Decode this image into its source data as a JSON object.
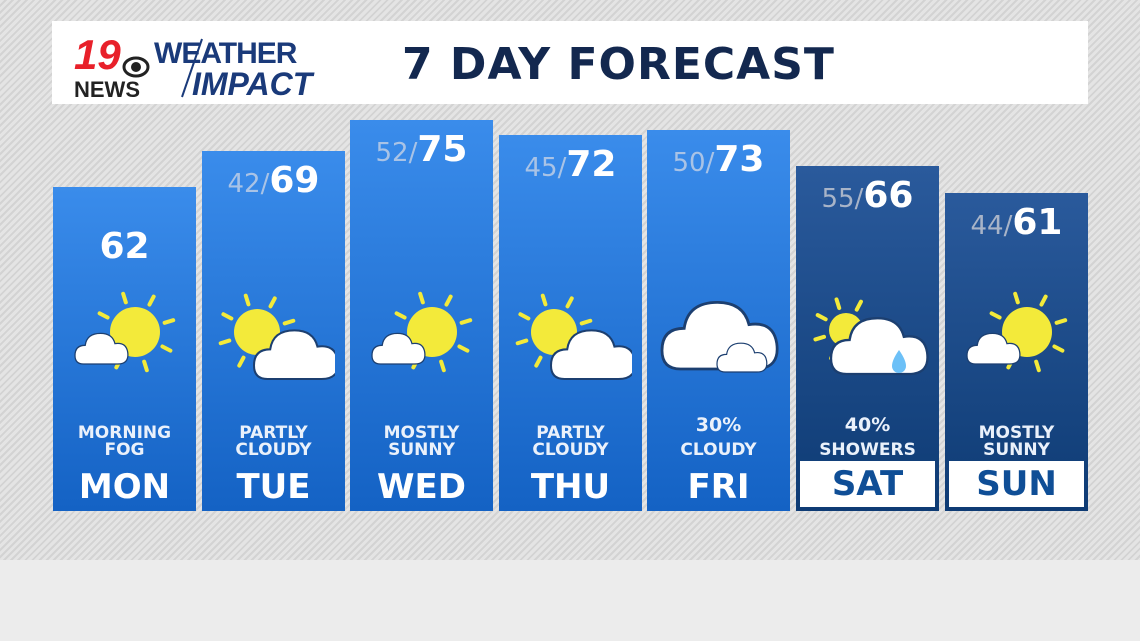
{
  "header": {
    "logo_text": "19 NEWS WEATHER IMPACT",
    "title": "7 DAY FORECAST"
  },
  "colors": {
    "sun": "#f3ea3a",
    "cloud": "#ffffff",
    "rain": "#6cc0f7",
    "weekday_column": "#2878da",
    "weekend_column": "#1c4a88",
    "title": "#13284f"
  },
  "days": [
    {
      "day": "MON",
      "low": "",
      "high": "62",
      "line1": "MORNING",
      "line2": "FOG",
      "icon": "sun-small-cloud"
    },
    {
      "day": "TUE",
      "low": "42/",
      "high": "69",
      "line1": "PARTLY",
      "line2": "CLOUDY",
      "icon": "partly-cloudy"
    },
    {
      "day": "WED",
      "low": "52/",
      "high": "75",
      "line1": "MOSTLY",
      "line2": "SUNNY",
      "icon": "sun-small-cloud"
    },
    {
      "day": "THU",
      "low": "45/",
      "high": "72",
      "line1": "PARTLY",
      "line2": "CLOUDY",
      "icon": "partly-cloudy"
    },
    {
      "day": "FRI",
      "low": "50/",
      "high": "73",
      "line1": "30%",
      "line2": "CLOUDY",
      "icon": "cloudy"
    },
    {
      "day": "SAT",
      "low": "55/",
      "high": "66",
      "line1": "40%",
      "line2": "SHOWERS",
      "icon": "showers"
    },
    {
      "day": "SUN",
      "low": "44/",
      "high": "61",
      "line1": "MOSTLY",
      "line2": "SUNNY",
      "icon": "sun-small-cloud"
    }
  ]
}
